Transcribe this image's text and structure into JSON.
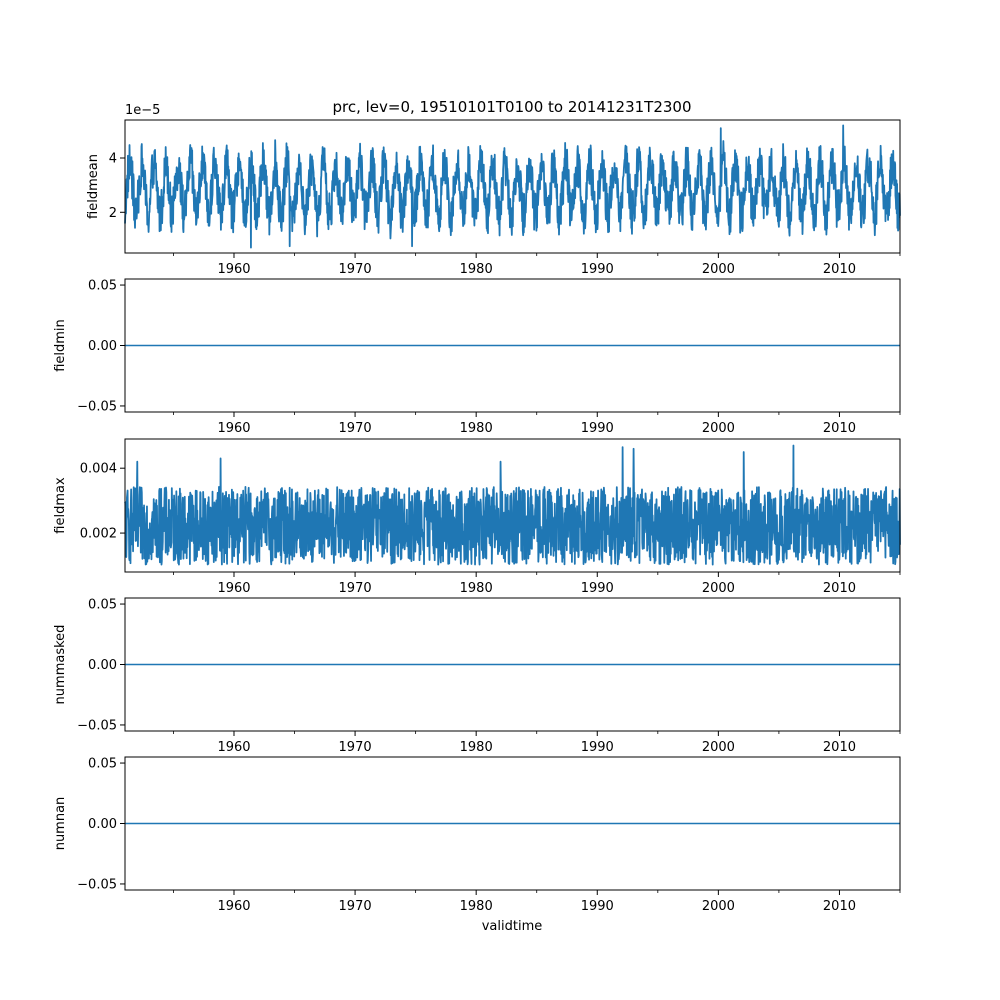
{
  "figure": {
    "title": "prc, lev=0, 19510101T0100 to 20141231T2300",
    "xlabel": "validtime",
    "series_color": "#1f77b4"
  },
  "chart_data": [
    {
      "type": "line",
      "name": "fieldmean",
      "ylabel": "fieldmean",
      "offset_text": "1e−5",
      "xlim": [
        1951.0,
        2015.0
      ],
      "ylim": [
        0.5,
        5.4
      ],
      "yticks": [
        2,
        4
      ],
      "ytick_labels": [
        "2",
        "4"
      ],
      "xticks": [
        1960,
        1970,
        1980,
        1990,
        2000,
        2010
      ],
      "xtick_labels": [
        "1960",
        "1970",
        "1980",
        "1990",
        "2000",
        "2010"
      ],
      "envelope": {
        "typical_low": 1.4,
        "typical_high": 4.3,
        "annual_cycle": true
      },
      "extremes": [
        {
          "x": 1961.4,
          "y": 0.7
        },
        {
          "x": 1964.6,
          "y": 0.75
        },
        {
          "x": 1974.7,
          "y": 0.75
        },
        {
          "x": 2000.2,
          "y": 5.1
        },
        {
          "x": 2010.3,
          "y": 5.2
        }
      ]
    },
    {
      "type": "line",
      "name": "fieldmin",
      "ylabel": "fieldmin",
      "xlim": [
        1951.0,
        2015.0
      ],
      "ylim": [
        -0.055,
        0.055
      ],
      "yticks": [
        -0.05,
        0.0,
        0.05
      ],
      "ytick_labels": [
        "−0.05",
        "0.00",
        "0.05"
      ],
      "xticks": [
        1960,
        1970,
        1980,
        1990,
        2000,
        2010
      ],
      "xtick_labels": [
        "1960",
        "1970",
        "1980",
        "1990",
        "2000",
        "2010"
      ],
      "constant": 0.0
    },
    {
      "type": "line",
      "name": "fieldmax",
      "ylabel": "fieldmax",
      "xlim": [
        1951.0,
        2015.0
      ],
      "ylim": [
        0.0008,
        0.0049
      ],
      "yticks": [
        0.002,
        0.004
      ],
      "ytick_labels": [
        "0.002",
        "0.004"
      ],
      "xticks": [
        1960,
        1970,
        1980,
        1990,
        2000,
        2010
      ],
      "xtick_labels": [
        "1960",
        "1970",
        "1980",
        "1990",
        "2000",
        "2010"
      ],
      "envelope": {
        "typical_low": 0.00105,
        "typical_high": 0.0034,
        "annual_cycle": false
      },
      "extremes": [
        {
          "x": 1952.0,
          "y": 0.0042
        },
        {
          "x": 1958.9,
          "y": 0.0043
        },
        {
          "x": 1982.0,
          "y": 0.0042
        },
        {
          "x": 1992.1,
          "y": 0.00465
        },
        {
          "x": 1993.0,
          "y": 0.0046
        },
        {
          "x": 2002.1,
          "y": 0.0045
        },
        {
          "x": 2006.2,
          "y": 0.0047
        }
      ]
    },
    {
      "type": "line",
      "name": "nummasked",
      "ylabel": "nummasked",
      "xlim": [
        1951.0,
        2015.0
      ],
      "ylim": [
        -0.055,
        0.055
      ],
      "yticks": [
        -0.05,
        0.0,
        0.05
      ],
      "ytick_labels": [
        "−0.05",
        "0.00",
        "0.05"
      ],
      "xticks": [
        1960,
        1970,
        1980,
        1990,
        2000,
        2010
      ],
      "xtick_labels": [
        "1960",
        "1970",
        "1980",
        "1990",
        "2000",
        "2010"
      ],
      "constant": 0.0
    },
    {
      "type": "line",
      "name": "numnan",
      "ylabel": "numnan",
      "xlim": [
        1951.0,
        2015.0
      ],
      "ylim": [
        -0.055,
        0.055
      ],
      "yticks": [
        -0.05,
        0.0,
        0.05
      ],
      "ytick_labels": [
        "−0.05",
        "0.00",
        "0.05"
      ],
      "xticks": [
        1960,
        1970,
        1980,
        1990,
        2000,
        2010
      ],
      "xtick_labels": [
        "1960",
        "1970",
        "1980",
        "1990",
        "2000",
        "2010"
      ],
      "constant": 0.0
    }
  ]
}
